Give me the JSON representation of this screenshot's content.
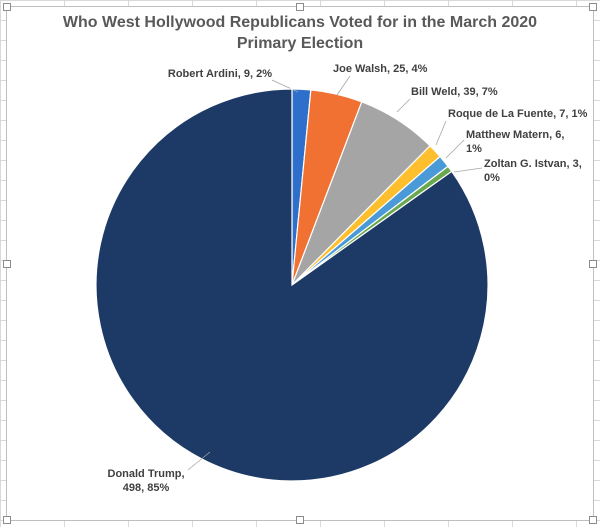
{
  "chart_data": {
    "type": "pie",
    "title_lines": [
      "Who West Hollywood Republicans Voted for in the March 2020",
      "Primary Election"
    ],
    "slices": [
      {
        "name": "Robert Ardini",
        "value": 9,
        "percent": "2%",
        "label_lines": [
          "Robert Ardini, 9, 2%"
        ],
        "color": "#2e6fcc"
      },
      {
        "name": "Joe Walsh",
        "value": 25,
        "percent": "4%",
        "label_lines": [
          "Joe Walsh, 25, 4%"
        ],
        "color": "#f07132"
      },
      {
        "name": "Bill Weld",
        "value": 39,
        "percent": "7%",
        "label_lines": [
          "Bill Weld, 39, 7%"
        ],
        "color": "#a5a5a5"
      },
      {
        "name": "Roque de La Fuente",
        "value": 7,
        "percent": "1%",
        "label_lines": [
          "Roque de La Fuente, 7, 1%"
        ],
        "color": "#fdbf2d"
      },
      {
        "name": "Matthew Matern",
        "value": 6,
        "percent": "1%",
        "label_lines": [
          "Matthew Matern, 6,",
          "1%"
        ],
        "color": "#4a9ad8"
      },
      {
        "name": "Zoltan G. Istvan",
        "value": 3,
        "percent": "0%",
        "label_lines": [
          "Zoltan G. Istvan, 3,",
          "0%"
        ],
        "color": "#6aa84f"
      },
      {
        "name": "Donald Trump",
        "value": 498,
        "percent": "85%",
        "label_lines": [
          "Donald Trump,",
          "498, 85%"
        ],
        "color": "#1d3a66"
      }
    ],
    "legend": "none",
    "data_labels": "outside with leader lines"
  }
}
